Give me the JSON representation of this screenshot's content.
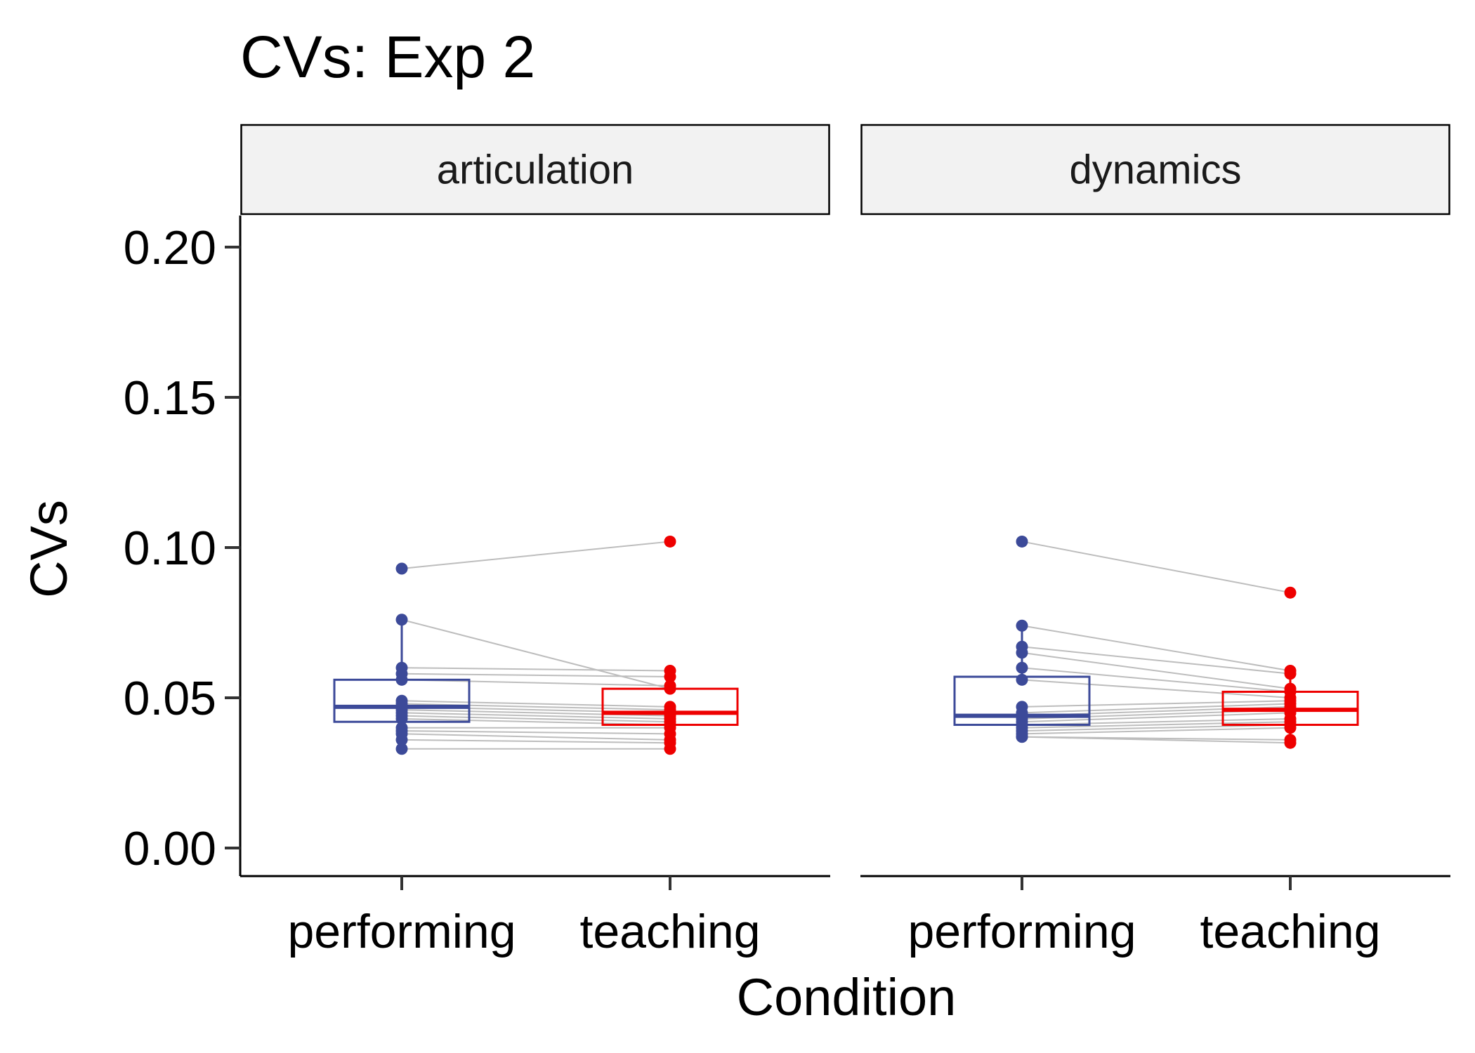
{
  "chart_data": {
    "type": "box",
    "title": "CVs: Exp 2",
    "xlabel": "Condition",
    "ylabel": "CVs",
    "ylim": [
      0,
      0.2
    ],
    "yticks": [
      "0.00",
      "0.05",
      "0.10",
      "0.15",
      "0.20"
    ],
    "categories": [
      "performing",
      "teaching"
    ],
    "colors": {
      "performing": "#3C4A99",
      "teaching": "#EE0000",
      "pairs": "#BDBDBD"
    },
    "grid": false,
    "legend": "none",
    "panels": [
      {
        "label": "articulation",
        "boxes": [
          {
            "category": "performing",
            "min": 0.033,
            "q1": 0.042,
            "median": 0.047,
            "q3": 0.056,
            "max": 0.076
          },
          {
            "category": "teaching",
            "min": 0.033,
            "q1": 0.041,
            "median": 0.045,
            "q3": 0.053,
            "max": 0.059
          }
        ],
        "pairs": [
          [
            0.093,
            0.102
          ],
          [
            0.076,
            0.053
          ],
          [
            0.06,
            0.059
          ],
          [
            0.058,
            0.057
          ],
          [
            0.056,
            0.054
          ],
          [
            0.049,
            0.047
          ],
          [
            0.048,
            0.046
          ],
          [
            0.047,
            0.045
          ],
          [
            0.046,
            0.044
          ],
          [
            0.045,
            0.043
          ],
          [
            0.044,
            0.042
          ],
          [
            0.043,
            0.041
          ],
          [
            0.04,
            0.04
          ],
          [
            0.039,
            0.038
          ],
          [
            0.038,
            0.036
          ],
          [
            0.036,
            0.035
          ],
          [
            0.033,
            0.033
          ]
        ]
      },
      {
        "label": "dynamics",
        "boxes": [
          {
            "category": "performing",
            "min": 0.037,
            "q1": 0.041,
            "median": 0.044,
            "q3": 0.057,
            "max": 0.074
          },
          {
            "category": "teaching",
            "min": 0.035,
            "q1": 0.041,
            "median": 0.046,
            "q3": 0.052,
            "max": 0.059
          }
        ],
        "pairs": [
          [
            0.102,
            0.085
          ],
          [
            0.074,
            0.059
          ],
          [
            0.067,
            0.058
          ],
          [
            0.065,
            0.053
          ],
          [
            0.06,
            0.052
          ],
          [
            0.056,
            0.05
          ],
          [
            0.047,
            0.049
          ],
          [
            0.045,
            0.048
          ],
          [
            0.044,
            0.047
          ],
          [
            0.043,
            0.046
          ],
          [
            0.042,
            0.045
          ],
          [
            0.041,
            0.043
          ],
          [
            0.04,
            0.042
          ],
          [
            0.039,
            0.041
          ],
          [
            0.038,
            0.04
          ],
          [
            0.037,
            0.036
          ],
          [
            0.037,
            0.035
          ]
        ]
      }
    ]
  }
}
